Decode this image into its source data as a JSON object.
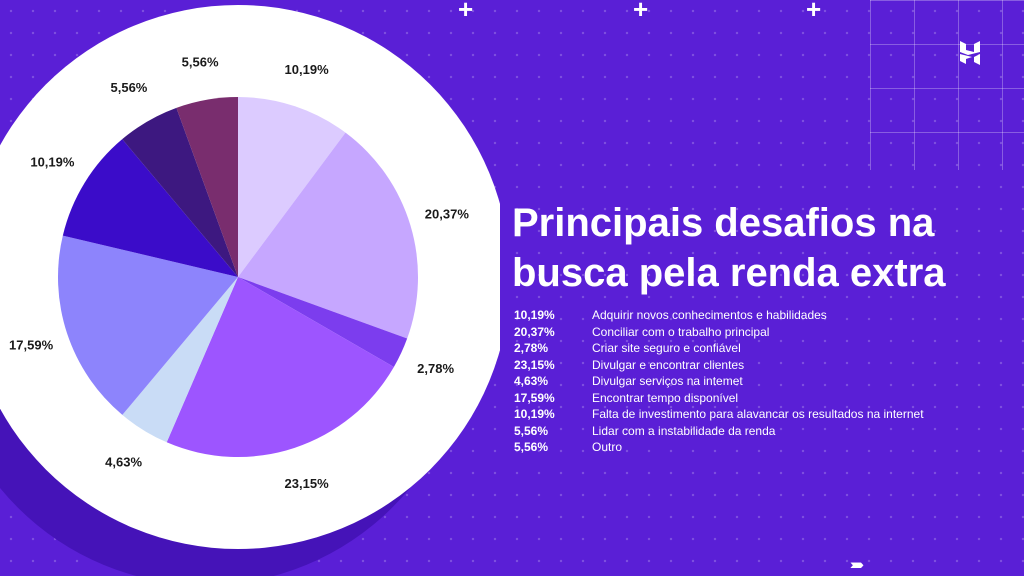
{
  "title": "Principais desafios na busca pela renda extra",
  "brand": {
    "logo_icon": "hostinger-h-logo"
  },
  "colors": {
    "background": "#5a1fd6",
    "ring": "#ffffff"
  },
  "chart_data": {
    "type": "pie",
    "slices": [
      {
        "label": "Adquirir novos conhecimentos e habilidades",
        "value": 10.19,
        "display": "10,19%",
        "color": "#dccbff"
      },
      {
        "label": "Conciliar com o trabalho principal",
        "value": 20.37,
        "display": "20,37%",
        "color": "#c6a7ff"
      },
      {
        "label": "Criar site seguro e confiável",
        "value": 2.78,
        "display": "2,78%",
        "color": "#7c3dee"
      },
      {
        "label": "Divulgar e encontrar clientes",
        "value": 23.15,
        "display": "23,15%",
        "color": "#9d55ff"
      },
      {
        "label": "Divulgar serviços na intemet",
        "value": 4.63,
        "display": "4,63%",
        "color": "#c9dcf6"
      },
      {
        "label": "Encontrar tempo disponível",
        "value": 17.59,
        "display": "17,59%",
        "color": "#8d84fc"
      },
      {
        "label": "Falta de investimento para alavancar os resultados na internet",
        "value": 10.19,
        "display": "10,19%",
        "color": "#3b0cc9"
      },
      {
        "label": "Lidar com a instabilidade da renda",
        "value": 5.56,
        "display": "5,56%",
        "color": "#3d1880"
      },
      {
        "label": "Outro",
        "value": 5.56,
        "display": "5,56%",
        "color": "#792d6e"
      }
    ]
  }
}
